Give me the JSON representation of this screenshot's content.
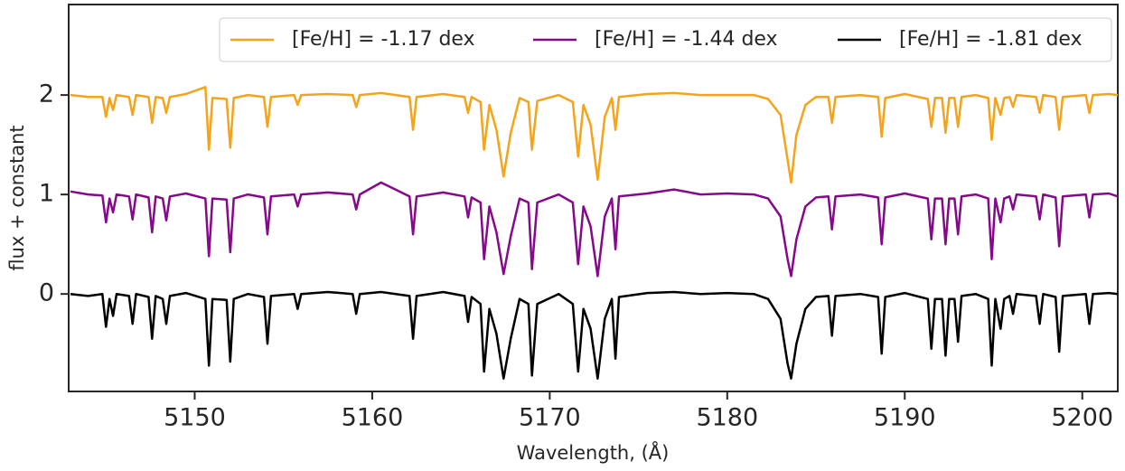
{
  "chart_data": {
    "type": "line",
    "xlabel": "Wavelength, (Å)",
    "ylabel": "flux + constant",
    "xlim": [
      5142.9,
      5202.0
    ],
    "ylim": [
      -0.98,
      2.91
    ],
    "xticks": [
      5150,
      5160,
      5170,
      5180,
      5190,
      5200
    ],
    "yticks": [
      0,
      1,
      2
    ],
    "grid": false,
    "legend": "upper right",
    "x": [
      5143.0,
      5144.0,
      5144.8,
      5145.0,
      5145.2,
      5145.4,
      5145.6,
      5146.3,
      5146.5,
      5146.7,
      5147.4,
      5147.6,
      5147.8,
      5148.2,
      5148.4,
      5148.6,
      5149.5,
      5150.6,
      5150.8,
      5151.0,
      5151.8,
      5152.0,
      5152.2,
      5153.0,
      5153.9,
      5154.1,
      5154.3,
      5155.6,
      5155.8,
      5156.0,
      5157.5,
      5158.9,
      5159.1,
      5159.3,
      5160.5,
      5162.1,
      5162.3,
      5162.5,
      5164.0,
      5165.2,
      5165.4,
      5165.6,
      5166.1,
      5166.3,
      5166.6,
      5167.0,
      5167.4,
      5167.8,
      5168.3,
      5168.8,
      5169.0,
      5169.3,
      5170.5,
      5171.3,
      5171.6,
      5171.9,
      5172.3,
      5172.7,
      5173.1,
      5173.5,
      5173.7,
      5173.9,
      5175.5,
      5177.0,
      5178.5,
      5180.0,
      5181.5,
      5182.3,
      5183.0,
      5183.4,
      5183.6,
      5183.9,
      5184.4,
      5185.0,
      5185.7,
      5185.9,
      5186.1,
      5187.5,
      5188.5,
      5188.7,
      5188.9,
      5190.0,
      5191.3,
      5191.5,
      5191.7,
      5192.1,
      5192.3,
      5192.5,
      5192.8,
      5193.0,
      5193.2,
      5194.0,
      5194.7,
      5194.9,
      5195.1,
      5195.4,
      5195.6,
      5195.9,
      5196.1,
      5196.3,
      5197.4,
      5197.6,
      5197.8,
      5198.5,
      5198.7,
      5198.9,
      5200.2,
      5200.4,
      5200.6,
      5201.5,
      5202.0
    ],
    "series": [
      {
        "name": "[Fe/H] = -1.17 dex",
        "color": "#f5a31a",
        "values": [
          2.0,
          1.98,
          1.98,
          1.78,
          1.97,
          1.85,
          2.0,
          1.98,
          1.8,
          2.0,
          1.98,
          1.72,
          1.98,
          1.97,
          1.82,
          1.98,
          2.01,
          2.08,
          1.45,
          1.97,
          1.96,
          1.47,
          1.97,
          2.0,
          1.98,
          1.68,
          1.98,
          2.0,
          1.9,
          2.0,
          2.01,
          2.0,
          1.88,
          2.0,
          2.02,
          1.98,
          1.65,
          1.98,
          2.01,
          1.98,
          1.82,
          1.98,
          1.93,
          1.45,
          1.9,
          1.65,
          1.18,
          1.62,
          1.97,
          1.93,
          1.45,
          1.94,
          2.0,
          1.93,
          1.38,
          1.9,
          1.7,
          1.15,
          1.78,
          1.97,
          1.65,
          1.98,
          2.01,
          2.02,
          2.0,
          2.0,
          2.0,
          1.96,
          1.8,
          1.35,
          1.12,
          1.6,
          1.9,
          1.98,
          1.98,
          1.72,
          1.98,
          2.0,
          1.98,
          1.58,
          1.97,
          2.01,
          1.96,
          1.68,
          1.97,
          1.97,
          1.62,
          1.97,
          1.97,
          1.68,
          1.98,
          2.0,
          1.97,
          1.55,
          1.97,
          1.8,
          1.97,
          1.98,
          1.88,
          2.0,
          1.98,
          1.82,
          2.0,
          1.98,
          1.65,
          1.98,
          2.0,
          1.82,
          2.0,
          2.01,
          2.0
        ]
      },
      {
        "name": "[Fe/H] = -1.44 dex",
        "color": "#85098a",
        "values": [
          1.03,
          1.0,
          0.99,
          0.72,
          0.96,
          0.82,
          1.0,
          0.98,
          0.75,
          1.0,
          0.97,
          0.62,
          0.98,
          0.96,
          0.74,
          0.98,
          1.01,
          0.96,
          0.38,
          0.96,
          0.95,
          0.42,
          0.96,
          1.0,
          0.97,
          0.6,
          0.98,
          1.0,
          0.88,
          1.0,
          1.02,
          1.0,
          0.85,
          1.0,
          1.12,
          0.98,
          0.6,
          0.98,
          1.02,
          0.98,
          0.77,
          0.97,
          0.92,
          0.35,
          0.88,
          0.62,
          0.2,
          0.58,
          0.96,
          0.92,
          0.25,
          0.92,
          1.0,
          0.92,
          0.3,
          0.88,
          0.68,
          0.18,
          0.78,
          0.96,
          0.45,
          0.98,
          1.01,
          1.05,
          1.0,
          1.01,
          1.0,
          0.96,
          0.78,
          0.35,
          0.18,
          0.55,
          0.88,
          0.97,
          0.98,
          0.65,
          0.98,
          1.0,
          0.97,
          0.5,
          0.97,
          1.01,
          0.96,
          0.55,
          0.96,
          0.96,
          0.5,
          0.96,
          0.96,
          0.6,
          0.98,
          1.0,
          0.96,
          0.35,
          0.96,
          0.72,
          0.96,
          0.98,
          0.85,
          1.0,
          0.98,
          0.75,
          1.0,
          0.97,
          0.48,
          0.98,
          1.0,
          0.77,
          1.0,
          1.01,
          0.98
        ]
      },
      {
        "name": "[Fe/H] = -1.81 dex",
        "color": "#000000",
        "values": [
          0,
          -0.02,
          0,
          -0.33,
          -0.05,
          -0.22,
          0,
          -0.02,
          -0.3,
          0,
          -0.03,
          -0.45,
          -0.02,
          -0.05,
          -0.3,
          -0.02,
          0.01,
          -0.05,
          -0.72,
          -0.05,
          -0.06,
          -0.68,
          -0.05,
          0,
          -0.03,
          -0.5,
          -0.02,
          0,
          -0.15,
          0,
          0.02,
          0,
          -0.2,
          0,
          0.02,
          -0.02,
          -0.45,
          -0.02,
          0.02,
          -0.02,
          -0.28,
          -0.03,
          -0.1,
          -0.78,
          -0.15,
          -0.4,
          -0.85,
          -0.45,
          -0.05,
          -0.1,
          -0.82,
          -0.1,
          0,
          -0.1,
          -0.78,
          -0.15,
          -0.35,
          -0.85,
          -0.25,
          -0.05,
          -0.65,
          -0.03,
          0.01,
          0.02,
          0,
          0.01,
          0,
          -0.05,
          -0.25,
          -0.7,
          -0.85,
          -0.5,
          -0.15,
          -0.03,
          -0.02,
          -0.42,
          -0.02,
          0,
          -0.03,
          -0.6,
          -0.03,
          0.01,
          -0.05,
          -0.55,
          -0.05,
          -0.05,
          -0.62,
          -0.05,
          -0.05,
          -0.48,
          -0.02,
          0,
          -0.05,
          -0.72,
          -0.05,
          -0.35,
          -0.05,
          -0.02,
          -0.2,
          0,
          -0.02,
          -0.3,
          0,
          -0.03,
          -0.58,
          -0.02,
          0,
          -0.3,
          0,
          0.01,
          0
        ]
      }
    ]
  }
}
